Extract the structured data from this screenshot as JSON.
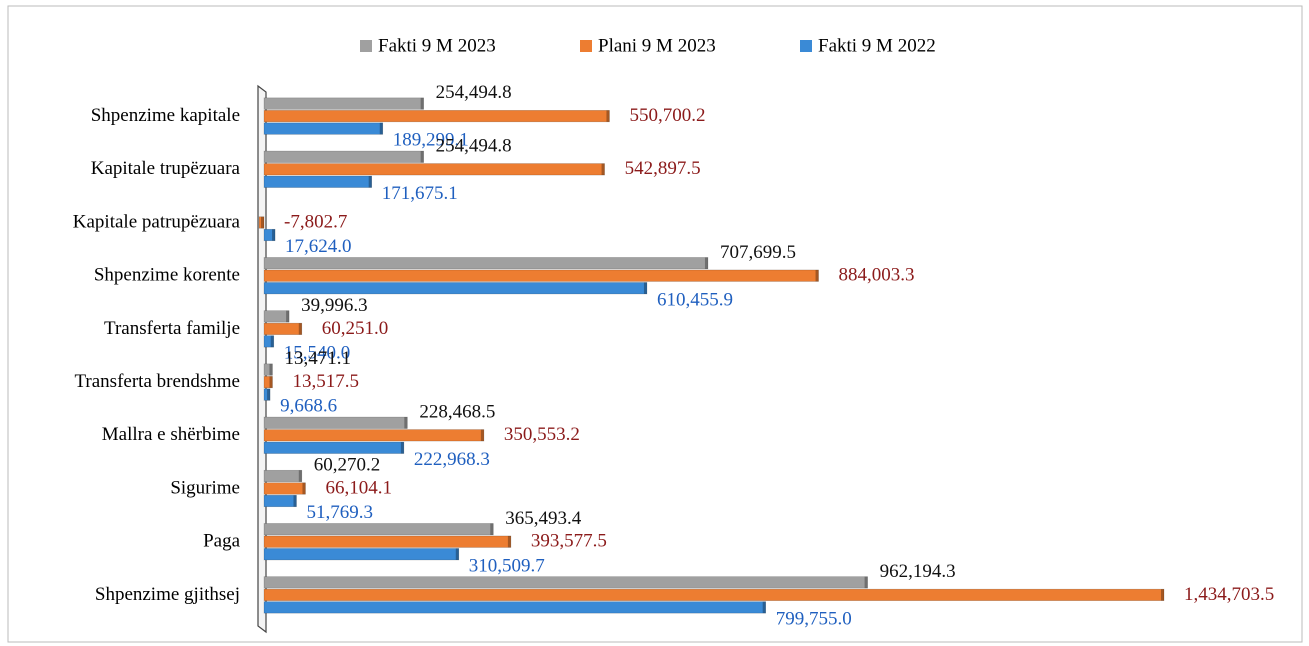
{
  "chart_data": {
    "type": "bar",
    "orientation": "horizontal",
    "categories": [
      "Shpenzime kapitale",
      "Kapitale trupëzuara",
      "Kapitale patrupëzuara",
      "Shpenzime korente",
      "Transferta familje",
      "Transferta brendshme",
      "Mallra e shërbime",
      "Sigurime",
      "Paga",
      "Shpenzime gjithsej"
    ],
    "series": [
      {
        "name": "Fakti 9 M 2023",
        "color": "#a0a0a0",
        "label_color": "#111111",
        "values": [
          254494.8,
          254494.8,
          0,
          707699.5,
          39996.3,
          13471.1,
          228468.5,
          60270.2,
          365493.4,
          962194.3
        ],
        "value_labels": [
          "254,494.8",
          "254,494.8",
          null,
          "707,699.5",
          "39,996.3",
          "13,471.1",
          "228,468.5",
          "60,270.2",
          "365,493.4",
          "962,194.3"
        ]
      },
      {
        "name": "Plani 9 M 2023",
        "color": "#ed7d31",
        "label_color": "#8b1a1a",
        "values": [
          550700.2,
          542897.5,
          -7802.7,
          884003.3,
          60251.0,
          13517.5,
          350553.2,
          66104.1,
          393577.5,
          1434703.5
        ],
        "value_labels": [
          "550,700.2",
          "542,897.5",
          "-7,802.7",
          "884,003.3",
          "60,251.0",
          "13,517.5",
          "350,553.2",
          "66,104.1",
          "393,577.5",
          "1,434,703.5"
        ]
      },
      {
        "name": "Fakti 9 M 2022",
        "color": "#3a8ad6",
        "label_color": "#1f5fbf",
        "values": [
          189299.1,
          171675.1,
          17624.0,
          610455.9,
          15540.0,
          9668.6,
          222968.3,
          51769.3,
          310509.7,
          799755.0
        ],
        "value_labels": [
          "189,299.1",
          "171,675.1",
          "17,624.0",
          "610,455.9",
          "15,540.0",
          "9,668.6",
          "222,968.3",
          "51,769.3",
          "310,509.7",
          "799,755.0"
        ]
      }
    ],
    "legend": "top"
  }
}
